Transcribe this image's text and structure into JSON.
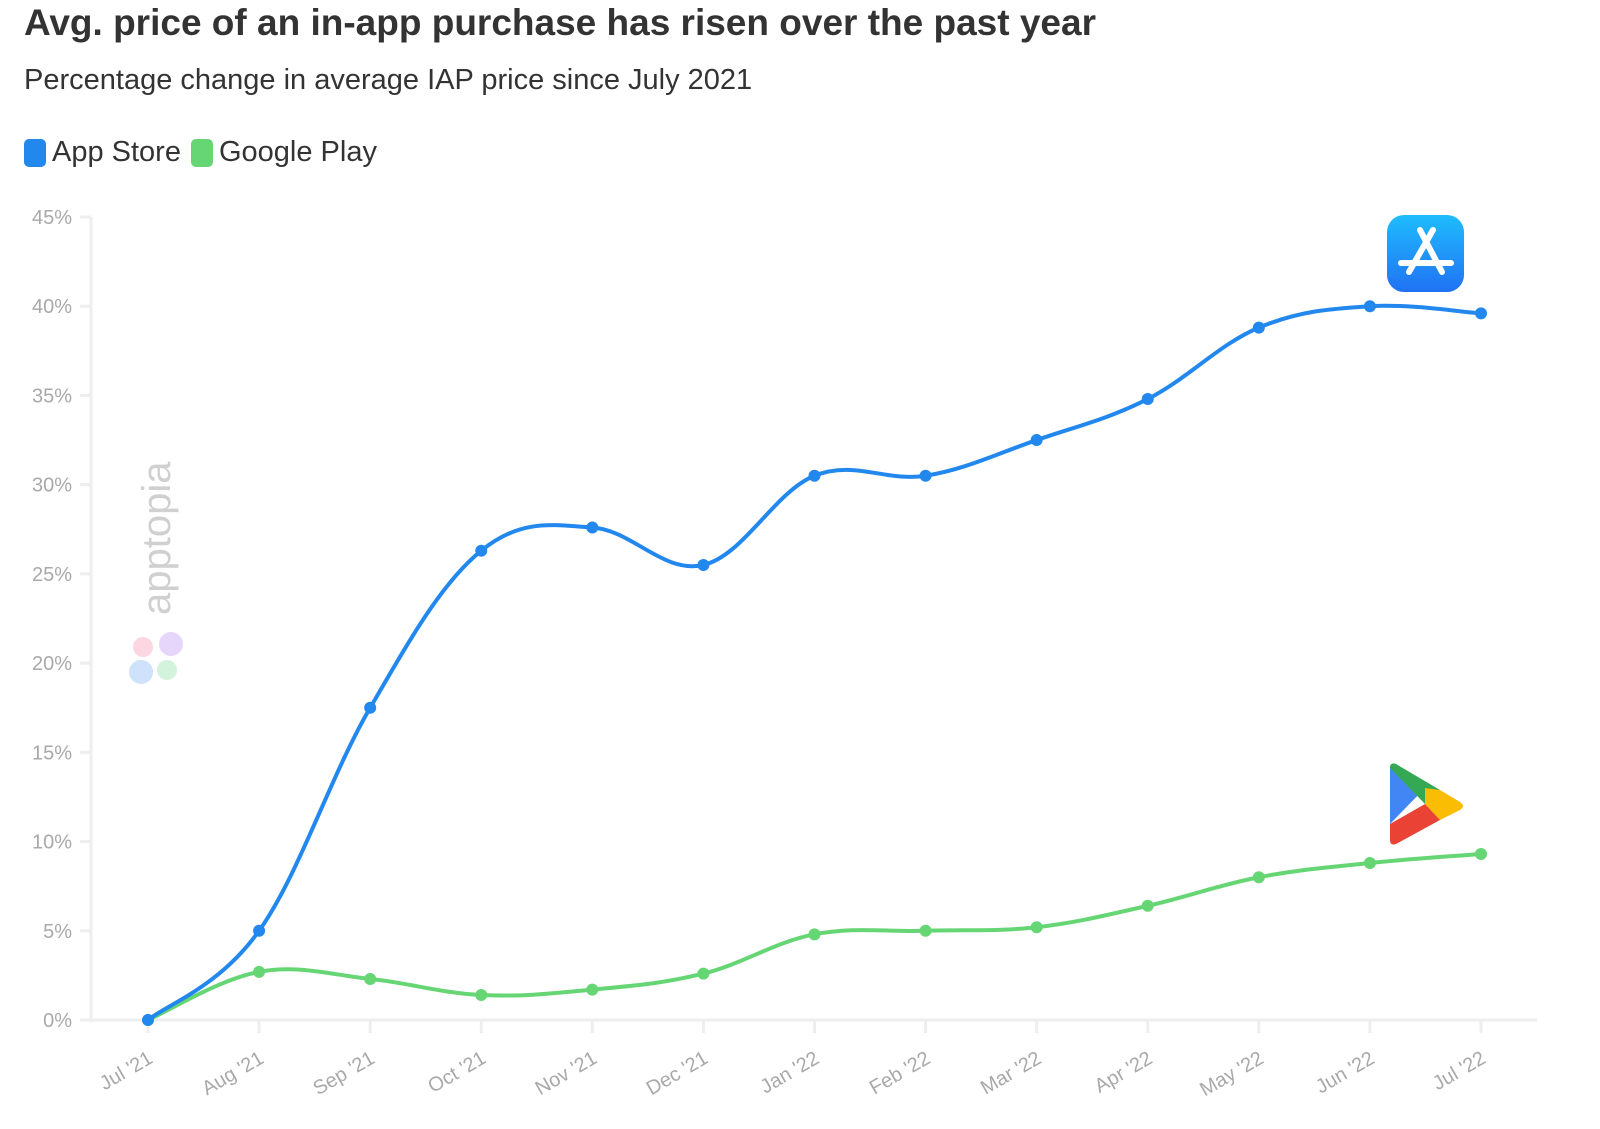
{
  "chart_data": {
    "type": "line",
    "title": "Avg. price of an in-app purchase has risen over the past year",
    "subtitle": "Percentage change in average IAP price since July 2021",
    "categories": [
      "Jul '21",
      "Aug '21",
      "Sep '21",
      "Oct '21",
      "Nov '21",
      "Dec '21",
      "Jan '22",
      "Feb '22",
      "Mar '22",
      "Apr '22",
      "May '22",
      "Jun '22",
      "Jul '22"
    ],
    "series": [
      {
        "name": "App Store",
        "color": "#2288ee",
        "values": [
          0,
          5.0,
          17.5,
          26.3,
          27.6,
          25.5,
          30.5,
          30.5,
          32.5,
          34.8,
          38.8,
          40.0,
          39.6
        ]
      },
      {
        "name": "Google Play",
        "color": "#66d674",
        "values": [
          0,
          2.7,
          2.3,
          1.4,
          1.7,
          2.6,
          4.8,
          5.0,
          5.2,
          6.4,
          8.0,
          8.8,
          9.3
        ]
      }
    ],
    "ylim": [
      0,
      45
    ],
    "yticks": [
      "0%",
      "5%",
      "10%",
      "15%",
      "20%",
      "25%",
      "30%",
      "35%",
      "40%",
      "45%"
    ],
    "grid": false,
    "legend_position": "top-left",
    "watermark": "apptopia",
    "icons": [
      "app-store-icon",
      "google-play-icon"
    ]
  }
}
